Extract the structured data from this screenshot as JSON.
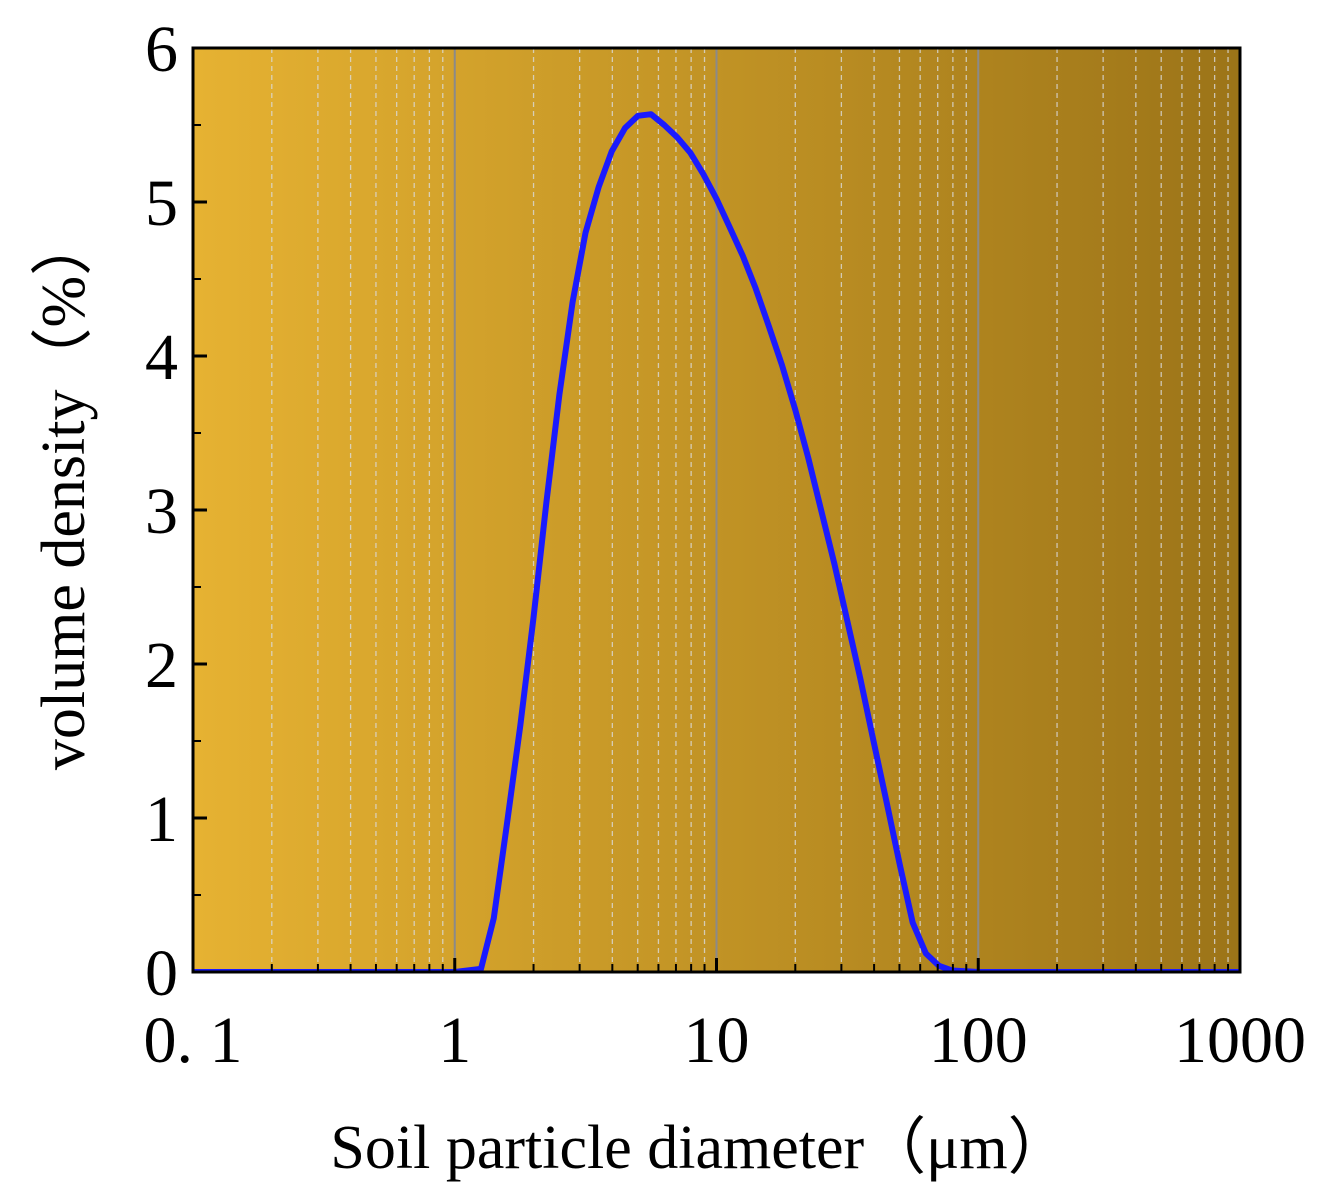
{
  "chart_data": {
    "type": "line",
    "title": "",
    "xlabel": "Soil particle diameter（μm）",
    "ylabel": "volume density（%）",
    "x_scale": "log",
    "xlim": [
      0.1,
      1000
    ],
    "ylim": [
      0,
      6
    ],
    "x_ticks": [
      0.1,
      1,
      10,
      100,
      1000
    ],
    "x_tick_labels": [
      "0. 1",
      "1",
      "10",
      "100",
      "1000"
    ],
    "y_ticks": [
      0,
      1,
      2,
      3,
      4,
      5,
      6
    ],
    "y_tick_labels": [
      "0",
      "1",
      "2",
      "3",
      "4",
      "5",
      "6"
    ],
    "grid": true,
    "series": [
      {
        "color": "#1a1aff",
        "x": [
          0.1,
          0.5,
          1.0,
          1.26,
          1.41,
          1.58,
          1.78,
          2.0,
          2.24,
          2.51,
          2.82,
          3.16,
          3.55,
          3.98,
          4.47,
          5.01,
          5.62,
          6.31,
          7.08,
          7.94,
          8.91,
          10.0,
          11.2,
          12.6,
          14.1,
          15.8,
          17.8,
          20.0,
          22.4,
          25.1,
          28.2,
          31.6,
          35.5,
          39.8,
          44.7,
          50.1,
          56.2,
          63.1,
          70.8,
          79.4,
          100,
          1000
        ],
        "y": [
          0,
          0,
          0,
          0.02,
          0.35,
          0.95,
          1.6,
          2.3,
          3.05,
          3.75,
          4.35,
          4.8,
          5.1,
          5.33,
          5.48,
          5.56,
          5.57,
          5.5,
          5.42,
          5.32,
          5.18,
          5.02,
          4.84,
          4.65,
          4.44,
          4.2,
          3.94,
          3.65,
          3.34,
          3.0,
          2.65,
          2.28,
          1.9,
          1.5,
          1.1,
          0.7,
          0.32,
          0.12,
          0.04,
          0.01,
          0,
          0
        ]
      }
    ],
    "background_gradient": [
      "#e6b232",
      "#9c7418"
    ]
  }
}
